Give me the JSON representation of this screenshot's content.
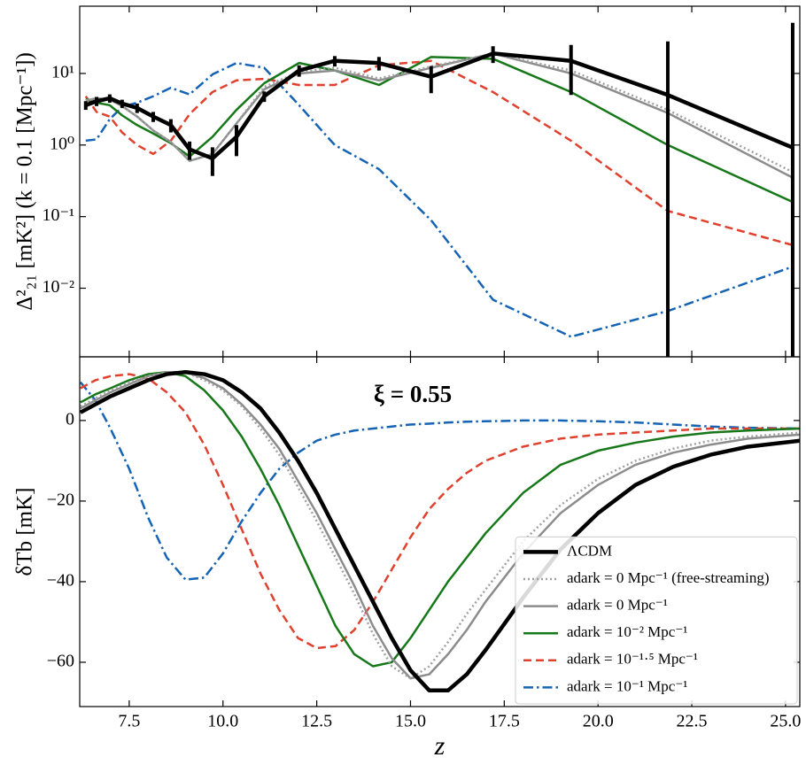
{
  "chart_data": [
    {
      "type": "line",
      "ylabel": "Δ²₂₁ [mK²] (k = 0.1 [Mpc⁻¹])",
      "log_y": true,
      "xtick_labels": false,
      "xlim": [
        6.18,
        25.38
      ],
      "ylim": [
        0.0011,
        87
      ],
      "xticks": [
        7.5,
        10,
        12.5,
        15,
        17.5,
        20,
        22.5,
        25
      ],
      "yticks": [
        {
          "value": 0.01,
          "label": "10⁻²"
        },
        {
          "value": 0.1,
          "label": "10⁻¹"
        },
        {
          "value": 1,
          "label": "10⁰"
        },
        {
          "value": 10,
          "label": "10¹"
        }
      ],
      "x": [
        6.34,
        6.63,
        6.98,
        7.31,
        7.71,
        8.14,
        8.61,
        9.11,
        9.72,
        10.36,
        11.1,
        12.03,
        12.98,
        14.16,
        15.55,
        17.2,
        19.28,
        21.86,
        25.19
      ],
      "series": [
        {
          "color": "#000000",
          "linestyle": "solid",
          "width": 4.5,
          "values": [
            3.6,
            4.1,
            4.5,
            3.8,
            3.3,
            2.5,
            1.9,
            0.87,
            0.65,
            1.3,
            4.8,
            11,
            15,
            14,
            9,
            19,
            15,
            5,
            0.92
          ],
          "errors": [
            0.5,
            0.6,
            0.6,
            0.5,
            0.5,
            0.4,
            0.4,
            0.25,
            0.28,
            0.6,
            0.8,
            2,
            2.5,
            3,
            3.7,
            5,
            10,
            23,
            50
          ]
        },
        {
          "color": "#a0a0a0",
          "linestyle": "dotted",
          "width": 2.5,
          "values": [
            4.2,
            4.5,
            4.3,
            3.5,
            2.5,
            1.6,
            1.1,
            0.6,
            0.75,
            2.0,
            6.5,
            10.5,
            12,
            8.5,
            12.5,
            19,
            11,
            3.1,
            0.42
          ]
        },
        {
          "color": "#8c8c8c",
          "linestyle": "solid",
          "width": 2.5,
          "values": [
            4.2,
            4.5,
            4.3,
            3.5,
            2.5,
            1.6,
            1.1,
            0.6,
            0.75,
            2.0,
            6,
            10,
            11,
            8,
            12,
            19,
            10,
            2.8,
            0.35
          ]
        },
        {
          "color": "#17781a",
          "linestyle": "solid",
          "width": 2.5,
          "values": [
            4.4,
            3.9,
            3.6,
            2.6,
            1.9,
            1.45,
            1.06,
            0.69,
            1.3,
            3.1,
            7.3,
            14,
            11,
            6.9,
            17,
            16,
            5.5,
            1.0,
            0.16
          ]
        },
        {
          "color": "#e0412f",
          "linestyle": "dashed",
          "width": 2.5,
          "values": [
            4.8,
            2.9,
            2.5,
            1.5,
            1,
            0.75,
            1.15,
            2.7,
            5.5,
            8,
            8.4,
            6.9,
            6.9,
            13,
            15,
            5.5,
            1.15,
            0.12,
            0.04
          ]
        },
        {
          "color": "#1563b5",
          "linestyle": "dashdot",
          "width": 2.5,
          "values": [
            1.15,
            1.2,
            2.3,
            3.4,
            3.9,
            4.8,
            6.3,
            5.1,
            9.7,
            14,
            12,
            3.6,
            1.0,
            0.46,
            0.089,
            0.0069,
            0.0021,
            0.0048,
            0.02
          ]
        }
      ]
    },
    {
      "type": "line",
      "xlabel": "z",
      "ylabel": "δTb [mK]",
      "annotation": "ξ = 0.55",
      "legend": "lower right",
      "xlim": [
        6.18,
        25.38
      ],
      "ylim": [
        -71,
        15.8
      ],
      "xticks": [
        7.5,
        {
          "value": 10,
          "label": "10.0"
        },
        12.5,
        {
          "value": 15,
          "label": "15.0"
        },
        17.5,
        {
          "value": 20,
          "label": "20.0"
        },
        22.5,
        {
          "value": 25,
          "label": "25.0"
        }
      ],
      "yticks": [
        {
          "value": -60,
          "label": "−60"
        },
        {
          "value": -40,
          "label": "−40"
        },
        {
          "value": -20,
          "label": "−20"
        },
        0
      ],
      "x": [
        6.2,
        6.6,
        7,
        7.5,
        8,
        8.5,
        9,
        9.5,
        10,
        10.5,
        11,
        11.5,
        12,
        12.5,
        13,
        13.5,
        14,
        14.5,
        15,
        15.5,
        16,
        16.5,
        17,
        18,
        19,
        20,
        21,
        22,
        23,
        24,
        25.4
      ],
      "series": [
        {
          "name": "ΛCDM",
          "color": "#000000",
          "linestyle": "solid",
          "width": 4.5,
          "values": [
            2,
            4,
            6,
            8,
            10,
            11.5,
            12,
            11.5,
            10,
            7,
            3,
            -3,
            -10,
            -18,
            -27,
            -36,
            -45,
            -54,
            -62,
            -67,
            -67,
            -63,
            -57,
            -44,
            -32,
            -23,
            -16,
            -11.5,
            -8.5,
            -6.5,
            -5
          ]
        },
        {
          "name": "adark = 0 Mpc⁻¹ (free-streaming)",
          "color": "#a0a0a0",
          "linestyle": "dotted",
          "width": 2.5,
          "values": [
            3.5,
            5.5,
            7.5,
            9.5,
            11,
            12,
            12,
            10,
            7.5,
            3.5,
            -2,
            -8.5,
            -16.5,
            -25,
            -34,
            -43,
            -53,
            -61,
            -64,
            -61,
            -55,
            -48,
            -42,
            -30,
            -21,
            -14.5,
            -10,
            -7,
            -5,
            -4,
            -3
          ]
        },
        {
          "name": "adark = 0 Mpc⁻¹",
          "color": "#8c8c8c",
          "linestyle": "solid",
          "width": 2.5,
          "values": [
            3,
            5,
            7,
            9,
            11,
            12,
            12,
            10.5,
            8,
            4,
            -1,
            -7,
            -15,
            -23,
            -32,
            -41,
            -51,
            -59,
            -64,
            -63,
            -58,
            -52,
            -45,
            -33,
            -23,
            -16,
            -11,
            -8,
            -6,
            -4.5,
            -3.5
          ]
        },
        {
          "name": "adark = 10⁻² Mpc⁻¹",
          "color": "#17781a",
          "linestyle": "solid",
          "width": 2.5,
          "values": [
            4.5,
            6.5,
            8,
            10,
            11.5,
            12,
            11,
            7.5,
            2.5,
            -4,
            -12,
            -21,
            -31,
            -41,
            -51,
            -58,
            -61,
            -60,
            -54,
            -47,
            -40,
            -34,
            -28,
            -18,
            -11,
            -7.5,
            -5.5,
            -4,
            -3,
            -2.5,
            -2
          ]
        },
        {
          "name": "adark = 10⁻¹·⁵ Mpc⁻¹",
          "color": "#e0412f",
          "linestyle": "dashed",
          "width": 2.5,
          "values": [
            8,
            10,
            11,
            11.5,
            10.5,
            7,
            2,
            -6,
            -16,
            -27,
            -38,
            -47,
            -54,
            -56.5,
            -56,
            -52,
            -45,
            -37,
            -29,
            -22,
            -17,
            -13,
            -10,
            -6.5,
            -4.5,
            -3.5,
            -3,
            -2.5,
            -2,
            -2,
            -2
          ]
        },
        {
          "name": "adark = 10⁻¹ Mpc⁻¹",
          "color": "#1563b5",
          "linestyle": "dashdot",
          "width": 2.5,
          "values": [
            9.5,
            5,
            -2,
            -12,
            -24,
            -34,
            -39.5,
            -39,
            -33,
            -25,
            -18,
            -12,
            -8,
            -5,
            -3.5,
            -2.5,
            -2,
            -1.5,
            -1,
            -0.8,
            -0.5,
            -0.3,
            -0.2,
            0,
            0,
            -0.2,
            -0.5,
            -1,
            -1.5,
            -1.8,
            -2
          ]
        }
      ]
    }
  ]
}
